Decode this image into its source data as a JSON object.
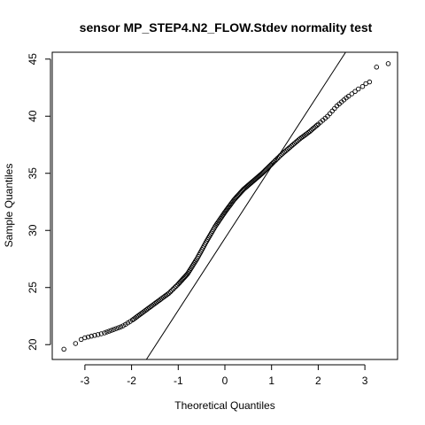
{
  "chart_data": {
    "type": "scatter",
    "subtype": "normal-qq-plot",
    "title": "sensor MP_STEP4.N2_FLOW.Stdev normality test",
    "xlabel": "Theoretical Quantiles",
    "ylabel": "Sample Quantiles",
    "xlim": [
      -3.7,
      3.7
    ],
    "ylim": [
      18.7,
      45.6
    ],
    "xticks": [
      -3,
      -2,
      -1,
      0,
      1,
      2,
      3
    ],
    "yticks": [
      20,
      25,
      30,
      35,
      40,
      45
    ],
    "xtick_labels": [
      "-3",
      "-2",
      "-1",
      "0",
      "1",
      "2",
      "3"
    ],
    "ytick_labels": [
      "20",
      "25",
      "30",
      "35",
      "40",
      "45"
    ],
    "grid": false,
    "marker": "open-circle",
    "point_color": "#000000",
    "line_color": "#000000",
    "reference_line": {
      "slope": 6.3,
      "intercept": 29.3
    },
    "quantile_curve": {
      "x": [
        -3.0,
        -2.6,
        -2.2,
        -2.0,
        -1.8,
        -1.6,
        -1.4,
        -1.2,
        -1.0,
        -0.8,
        -0.6,
        -0.4,
        -0.2,
        0.0,
        0.2,
        0.4,
        0.6,
        0.8,
        1.0,
        1.2,
        1.4,
        1.6,
        1.8,
        2.0,
        2.2,
        2.4,
        2.6,
        2.9
      ],
      "y": [
        20.6,
        21.0,
        21.6,
        22.1,
        22.7,
        23.3,
        23.9,
        24.5,
        25.3,
        26.2,
        27.5,
        29.0,
        30.4,
        31.6,
        32.7,
        33.6,
        34.3,
        35.0,
        35.8,
        36.6,
        37.3,
        38.0,
        38.6,
        39.3,
        40.0,
        40.9,
        41.6,
        42.5
      ]
    },
    "tail_points": [
      {
        "x": -3.45,
        "y": 19.6
      },
      {
        "x": -3.2,
        "y": 20.1
      },
      {
        "x": -3.08,
        "y": 20.45
      },
      {
        "x": 2.95,
        "y": 42.6
      },
      {
        "x": 3.02,
        "y": 42.85
      },
      {
        "x": 3.1,
        "y": 43.0
      },
      {
        "x": 3.25,
        "y": 44.3
      },
      {
        "x": 3.5,
        "y": 44.6
      }
    ]
  }
}
